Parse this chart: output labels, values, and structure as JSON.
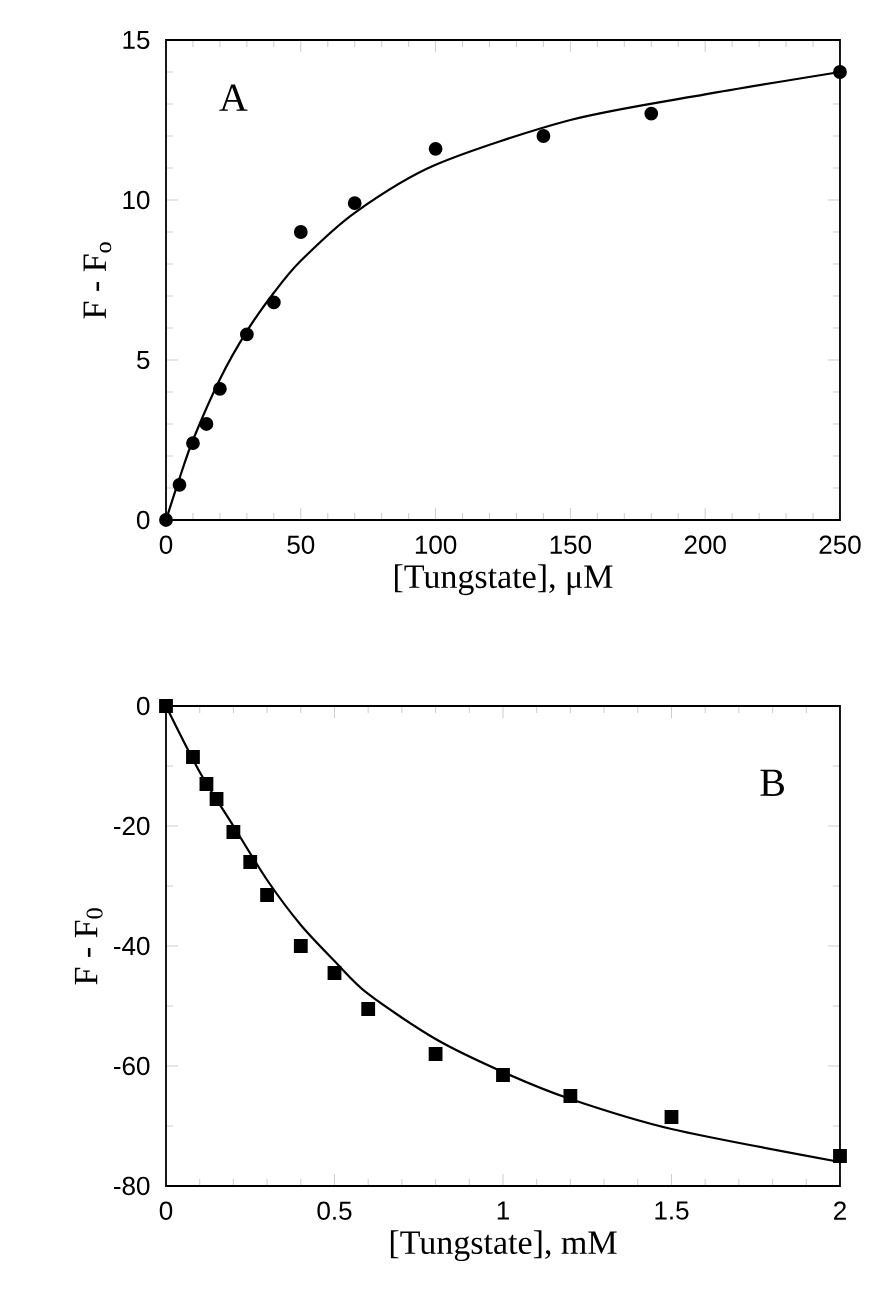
{
  "chart_data": [
    {
      "type": "scatter",
      "xlabel": "[Tungstate], μM",
      "ylabel": "F - F$_{o}$",
      "annotations": [
        "A"
      ],
      "xlim": [
        0,
        250
      ],
      "ylim": [
        0,
        15
      ],
      "xticks": [
        0,
        50,
        100,
        150,
        200,
        250
      ],
      "yticks": [
        0,
        5,
        10,
        15
      ],
      "series": [
        {
          "marker": "circle",
          "color": "#000000",
          "x": [
            0,
            5,
            10,
            15,
            20,
            30,
            40,
            50,
            70,
            100,
            140,
            180,
            250
          ],
          "values": [
            0,
            1.1,
            2.4,
            3.0,
            4.1,
            5.8,
            6.8,
            9.0,
            9.9,
            11.6,
            12.0,
            12.7,
            14.0
          ]
        },
        {
          "type": "line",
          "marker": "none",
          "line_style": "solid",
          "color": "#000000",
          "x": [
            0,
            5,
            10,
            20,
            30,
            40,
            50,
            70,
            100,
            150,
            200,
            250
          ],
          "values": [
            0,
            1.3,
            2.5,
            4.4,
            5.9,
            7.1,
            8.1,
            9.6,
            11.1,
            12.5,
            13.3,
            14.0
          ]
        }
      ]
    },
    {
      "type": "scatter",
      "xlabel": "[Tungstate], mM",
      "ylabel": "F - F$_{0}$",
      "annotations": [
        "B"
      ],
      "xlim": [
        0,
        2
      ],
      "ylim": [
        -80,
        0
      ],
      "xticks": [
        0,
        0.5,
        1,
        1.5,
        2
      ],
      "yticks": [
        -80,
        -60,
        -40,
        -20,
        0
      ],
      "series": [
        {
          "marker": "square",
          "color": "#000000",
          "x": [
            0,
            0.08,
            0.12,
            0.15,
            0.2,
            0.25,
            0.3,
            0.4,
            0.5,
            0.6,
            0.8,
            1.0,
            1.2,
            1.5,
            2.0
          ],
          "values": [
            0,
            -8.5,
            -13,
            -15.5,
            -21,
            -26,
            -31.5,
            -40,
            -44.5,
            -50.5,
            -58,
            -61.5,
            -65,
            -68.5,
            -75
          ]
        },
        {
          "type": "line",
          "marker": "none",
          "line_style": "solid",
          "color": "#000000",
          "x": [
            0,
            0.1,
            0.2,
            0.3,
            0.4,
            0.5,
            0.6,
            0.8,
            1.0,
            1.2,
            1.5,
            2.0
          ],
          "values": [
            0,
            -11,
            -20,
            -29,
            -36.5,
            -42.5,
            -48,
            -55.5,
            -61,
            -65.5,
            -70.5,
            -76
          ]
        }
      ]
    }
  ]
}
